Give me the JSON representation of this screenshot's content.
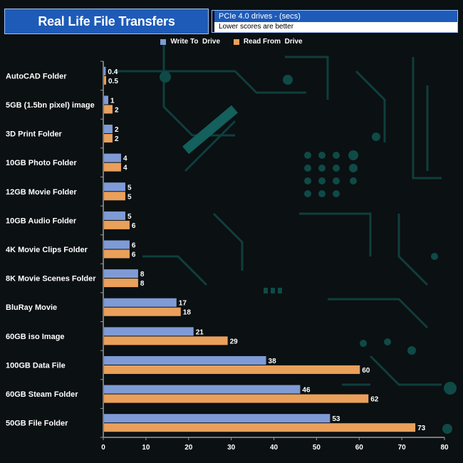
{
  "header": {
    "title": "Real Life File Transfers",
    "subtitle": "PCIe 4.0 drives - (secs)",
    "note": "Lower scores are better"
  },
  "colors": {
    "write": "#7f9bd6",
    "read": "#e9a05b",
    "title_bg": "#1e5bb8"
  },
  "chart_data": {
    "type": "bar",
    "orientation": "horizontal",
    "title": "Real Life File Transfers",
    "xlabel": "",
    "ylabel": "",
    "xlim": [
      0,
      80
    ],
    "xticks": [
      0,
      10,
      20,
      30,
      40,
      50,
      60,
      70,
      80
    ],
    "legend_position": "top-center",
    "categories": [
      "AutoCAD Folder",
      "5GB (1.5bn pixel) image",
      "3D Print Folder",
      "10GB Photo Folder",
      "12GB Movie Folder",
      "10GB Audio Folder",
      "4K Movie Clips Folder",
      "8K Movie Scenes Folder",
      "BluRay Movie",
      "60GB iso Image",
      "100GB Data File",
      "60GB Steam Folder",
      "50GB File Folder"
    ],
    "series": [
      {
        "name": "Write To  Drive",
        "values": [
          0.4,
          1,
          2,
          4,
          5,
          5,
          6,
          8,
          17,
          21,
          38,
          46,
          53
        ],
        "labels": [
          "0.4",
          "1",
          "2",
          "4",
          "5",
          "5",
          "6",
          "8",
          "17",
          "21",
          "38",
          "46",
          "53"
        ]
      },
      {
        "name": "Read From  Drive",
        "values": [
          0.5,
          2,
          2,
          4,
          5,
          6,
          6,
          8,
          18,
          29,
          60,
          62,
          73
        ],
        "labels": [
          "0.5",
          "2",
          "2",
          "4",
          "5",
          "6",
          "6",
          "8",
          "18",
          "29",
          "60",
          "62",
          "73"
        ]
      }
    ]
  }
}
